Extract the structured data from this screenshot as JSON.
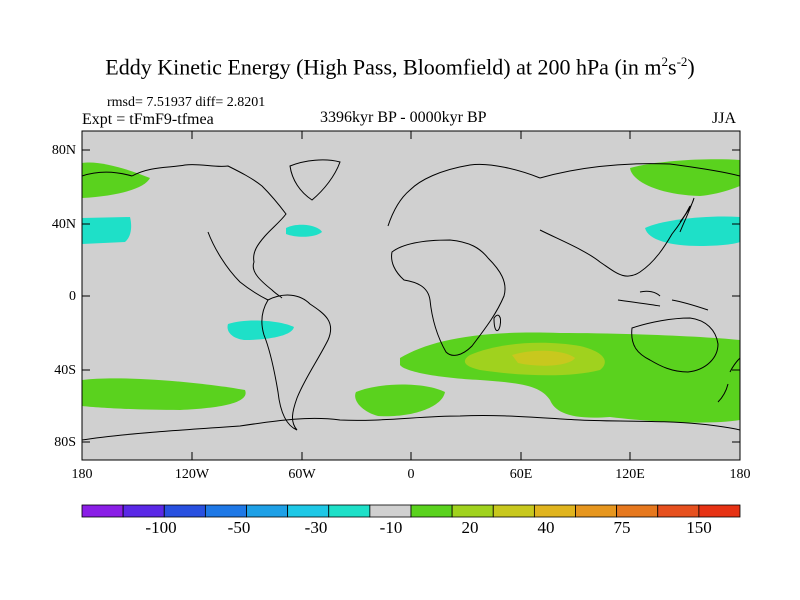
{
  "title": {
    "main": "Eddy Kinetic Energy (High Pass, Bloomfield) at 200 hPa (in m",
    "sup1": "2",
    "mid": "s",
    "sup2": "-2",
    "end": ")"
  },
  "stats": "rmsd= 7.51937 diff= 2.8201",
  "experiment": "Expt = tFmF9-tfmea",
  "period": "3396kyr BP - 0000kyr BP",
  "season": "JJA",
  "map": {
    "lat_labels": [
      "80N",
      "40N",
      "0",
      "40S",
      "80S"
    ],
    "lon_labels": [
      "180",
      "120W",
      "60W",
      "0",
      "60E",
      "120E",
      "180"
    ],
    "land_color": "#d0d0d0",
    "coast_color": "#000000"
  },
  "colorbar": {
    "colors": [
      "#8a1ee6",
      "#5a28e6",
      "#2850e0",
      "#1e78e6",
      "#1ea0e6",
      "#1ec8e6",
      "#1ee0c8",
      "#d0d0d0",
      "#5ad21e",
      "#a0d21e",
      "#c8c81e",
      "#e0b41e",
      "#e6961e",
      "#e6781e",
      "#e6501e",
      "#e63214"
    ],
    "labels": [
      "-100",
      "-50",
      "-30",
      "-10",
      "20",
      "40",
      "75",
      "150"
    ]
  },
  "anomaly_colors": {
    "green": "#5ad21e",
    "yellow_green": "#a0d21e",
    "ochre": "#c8c81e",
    "cyan": "#1ee0c8"
  }
}
